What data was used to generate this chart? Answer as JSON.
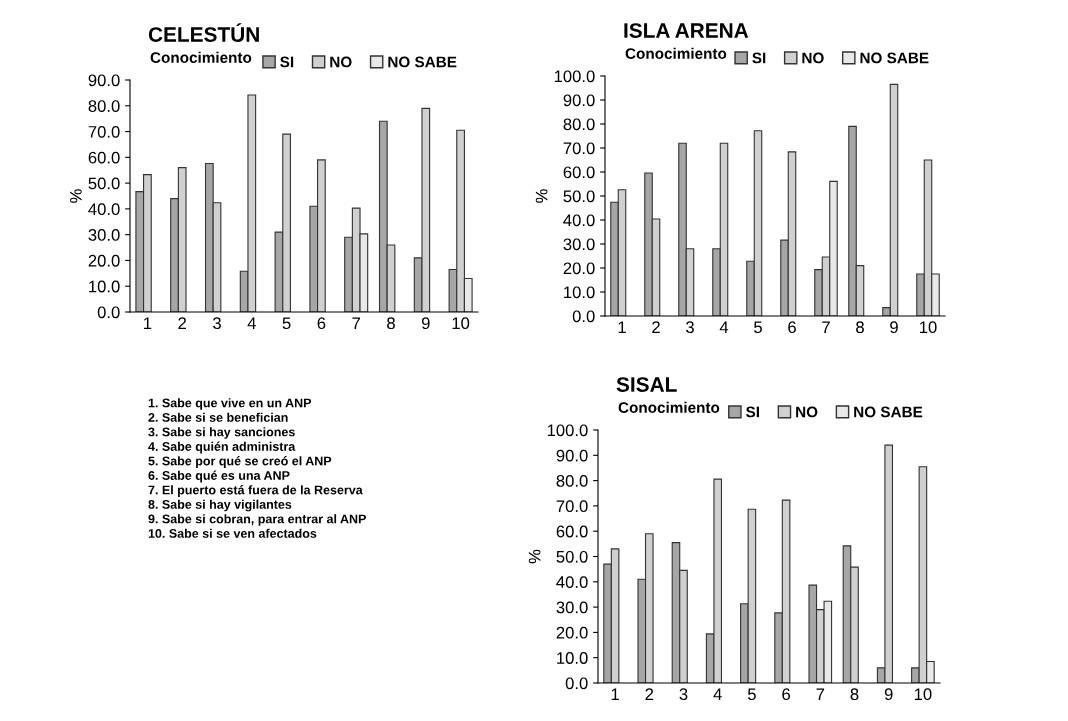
{
  "chart_data": [
    {
      "type": "bar",
      "title": "CELESTÚN",
      "subtitle": "Conocimiento",
      "ylabel": "%",
      "categories": [
        "1",
        "2",
        "3",
        "4",
        "5",
        "6",
        "7",
        "8",
        "9",
        "10"
      ],
      "legend": "top",
      "series": [
        {
          "name": "SI",
          "color": "#a6a6a6",
          "values": [
            46.7,
            44,
            57.6,
            15.8,
            31,
            41,
            29,
            74,
            21,
            16.5
          ]
        },
        {
          "name": "NO",
          "color": "#d0d0d0",
          "values": [
            53.3,
            56,
            42.4,
            84.2,
            69,
            59,
            40.3,
            26,
            79,
            70.5
          ]
        },
        {
          "name": "NO SABE",
          "color": "#e8e8e8",
          "values": [
            null,
            null,
            null,
            null,
            null,
            null,
            30.3,
            null,
            null,
            13
          ]
        }
      ],
      "ylim": [
        0,
        90
      ],
      "yticks": [
        {
          "value": 0,
          "label": "0.0"
        },
        {
          "value": 10,
          "label": "10.0"
        },
        {
          "value": 20,
          "label": "20.0"
        },
        {
          "value": 30,
          "label": "30.0"
        },
        {
          "value": 40,
          "label": "40.0"
        },
        {
          "value": 50,
          "label": "50.0"
        },
        {
          "value": 60,
          "label": "60.0"
        },
        {
          "value": 70,
          "label": "70.0"
        },
        {
          "value": 80,
          "label": "80.0"
        },
        {
          "value": 90,
          "label": "90.0"
        }
      ],
      "annotations": [
        "1. Sabe que vive en un ANP",
        "2. Sabe si se benefician",
        "3. Sabe si hay sanciones",
        "4. Sabe quién administra",
        "5. Sabe por qué se creó el ANP",
        "6. Sabe qué es una ANP",
        "7. El puerto está fuera de la Reserva",
        "8. Sabe si hay vigilantes",
        "9. Sabe si cobran, para entrar al ANP",
        "10. Sabe si se ven afectados"
      ]
    },
    {
      "type": "bar",
      "title": "ISLA ARENA",
      "subtitle": "Conocimiento",
      "ylabel": "%",
      "categories": [
        "1",
        "2",
        "3",
        "4",
        "5",
        "6",
        "7",
        "8",
        "9",
        "10"
      ],
      "legend": "top",
      "series": [
        {
          "name": "SI",
          "color": "#a6a6a6",
          "values": [
            47.4,
            59.6,
            72,
            28,
            22.8,
            31.6,
            19.3,
            79,
            3.5,
            17.5
          ]
        },
        {
          "name": "NO",
          "color": "#d0d0d0",
          "values": [
            52.6,
            40.4,
            28,
            72,
            77.2,
            68.4,
            24.6,
            21,
            96.5,
            65
          ]
        },
        {
          "name": "NO SABE",
          "color": "#e8e8e8",
          "values": [
            null,
            null,
            null,
            null,
            null,
            null,
            56.1,
            null,
            null,
            17.5
          ]
        }
      ],
      "ylim": [
        0,
        100
      ],
      "yticks": [
        {
          "value": 0,
          "label": "0.0"
        },
        {
          "value": 10,
          "label": "10.0"
        },
        {
          "value": 20,
          "label": "20.0"
        },
        {
          "value": 30,
          "label": "30.0"
        },
        {
          "value": 40,
          "label": "40.0"
        },
        {
          "value": 50,
          "label": "50.0"
        },
        {
          "value": 60,
          "label": "60.0"
        },
        {
          "value": 70,
          "label": "70.0"
        },
        {
          "value": 80,
          "label": "80.0"
        },
        {
          "value": 90,
          "label": "90.0"
        },
        {
          "value": 100,
          "label": "100.0"
        }
      ]
    },
    {
      "type": "bar",
      "title": "SISAL",
      "subtitle": "Conocimiento",
      "ylabel": "%",
      "categories": [
        "1",
        "2",
        "3",
        "4",
        "5",
        "6",
        "7",
        "8",
        "9",
        "10"
      ],
      "legend": "top",
      "series": [
        {
          "name": "SI",
          "color": "#a6a6a6",
          "values": [
            47,
            41,
            55.5,
            19.4,
            31.3,
            27.7,
            38.7,
            54.2,
            6,
            6
          ]
        },
        {
          "name": "NO",
          "color": "#d0d0d0",
          "values": [
            53,
            59,
            44.5,
            80.6,
            68.7,
            72.3,
            29,
            45.8,
            94,
            85.5
          ]
        },
        {
          "name": "NO SABE",
          "color": "#e8e8e8",
          "values": [
            null,
            null,
            null,
            null,
            null,
            null,
            32.3,
            null,
            null,
            8.5
          ]
        }
      ],
      "ylim": [
        0,
        100
      ],
      "yticks": [
        {
          "value": 0,
          "label": "0.0"
        },
        {
          "value": 10,
          "label": "10.0"
        },
        {
          "value": 20,
          "label": "20.0"
        },
        {
          "value": 30,
          "label": "30.0"
        },
        {
          "value": 40,
          "label": "40.0"
        },
        {
          "value": 50,
          "label": "50.0"
        },
        {
          "value": 60,
          "label": "60.0"
        },
        {
          "value": 70,
          "label": "70.0"
        },
        {
          "value": 80,
          "label": "80.0"
        },
        {
          "value": 90,
          "label": "90.0"
        },
        {
          "value": 100,
          "label": "100.0"
        }
      ]
    }
  ]
}
